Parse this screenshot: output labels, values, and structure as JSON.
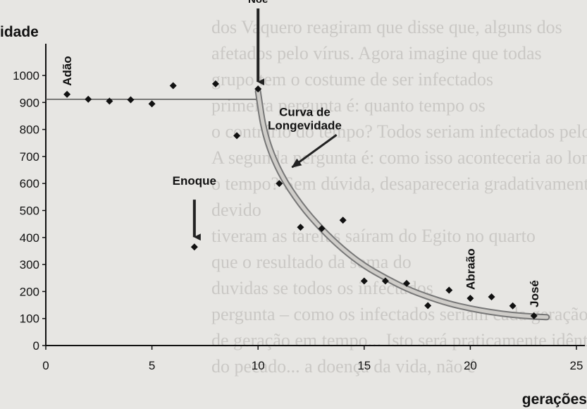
{
  "chart_data": {
    "type": "scatter",
    "ylabel": "idade",
    "xlabel": "gerações",
    "xlim": [
      0,
      25
    ],
    "ylim": [
      0,
      1000
    ],
    "x_ticks": [
      0,
      5,
      10,
      15,
      20,
      25
    ],
    "y_ticks": [
      0,
      100,
      200,
      300,
      400,
      500,
      600,
      700,
      800,
      900,
      1000
    ],
    "points": [
      {
        "x": 1,
        "y": 930
      },
      {
        "x": 2,
        "y": 912
      },
      {
        "x": 3,
        "y": 905
      },
      {
        "x": 4,
        "y": 910
      },
      {
        "x": 5,
        "y": 895
      },
      {
        "x": 6,
        "y": 962
      },
      {
        "x": 7,
        "y": 365
      },
      {
        "x": 8,
        "y": 969
      },
      {
        "x": 9,
        "y": 777
      },
      {
        "x": 10,
        "y": 950
      },
      {
        "x": 11,
        "y": 600
      },
      {
        "x": 12,
        "y": 438
      },
      {
        "x": 13,
        "y": 433
      },
      {
        "x": 14,
        "y": 464
      },
      {
        "x": 15,
        "y": 239
      },
      {
        "x": 16,
        "y": 239
      },
      {
        "x": 17,
        "y": 230
      },
      {
        "x": 18,
        "y": 148
      },
      {
        "x": 19,
        "y": 205
      },
      {
        "x": 20,
        "y": 175
      },
      {
        "x": 21,
        "y": 180
      },
      {
        "x": 22,
        "y": 147
      },
      {
        "x": 23,
        "y": 110
      }
    ],
    "reference_line": {
      "y": 912,
      "x_from": 0,
      "x_to": 10
    },
    "longevity_curve": [
      {
        "x": 10,
        "y": 940
      },
      {
        "x": 10.3,
        "y": 780
      },
      {
        "x": 11,
        "y": 640
      },
      {
        "x": 12,
        "y": 520
      },
      {
        "x": 13,
        "y": 430
      },
      {
        "x": 14,
        "y": 355
      },
      {
        "x": 15,
        "y": 295
      },
      {
        "x": 16,
        "y": 250
      },
      {
        "x": 17,
        "y": 210
      },
      {
        "x": 18,
        "y": 180
      },
      {
        "x": 19,
        "y": 155
      },
      {
        "x": 20,
        "y": 137
      },
      {
        "x": 21,
        "y": 123
      },
      {
        "x": 22,
        "y": 113
      },
      {
        "x": 23,
        "y": 107
      },
      {
        "x": 23.6,
        "y": 105
      }
    ],
    "annotations": [
      {
        "text": "Adão",
        "x": 1,
        "y": 930,
        "style": "vertical"
      },
      {
        "text": "Noé",
        "x": 10,
        "y": 950,
        "style": "arrow-down"
      },
      {
        "text": "Enoque",
        "x": 7,
        "y": 365,
        "style": "arrow-down"
      },
      {
        "text": "Curva de",
        "x": 12.2,
        "y": 850,
        "style": "text"
      },
      {
        "text": "Longevidade",
        "x": 12.2,
        "y": 800,
        "style": "text"
      },
      {
        "text": "Abraão",
        "x": 20,
        "y": 175,
        "style": "vertical"
      },
      {
        "text": "José",
        "x": 23,
        "y": 110,
        "style": "vertical"
      }
    ],
    "grid": false
  },
  "background_text": [
    "dos Vaquero reagiram que disse que, alguns dos",
    "afetados pelo vírus. Agora imagine que todas",
    "grupo tem o costume de ser infectados",
    "primeira pergunta é: quanto tempo os",
    "o contrário do tempo? Todos seriam infectados pelo vírus",
    "A segunda pergunta é: como isso aconteceria ao longo",
    "o tempo? Sem dúvida, desapareceria gradativamente",
    "devido",
    "tiveram as tarefas saíram do Egito no quarto",
    "que o resultado da soma do",
    "duvidas se todos os infectados",
    "pergunta – como os infectados seriam cada geração",
    "de geração em tempo... Isto será praticamente idêntico",
    "do pecado... a doença da vida, não é"
  ]
}
